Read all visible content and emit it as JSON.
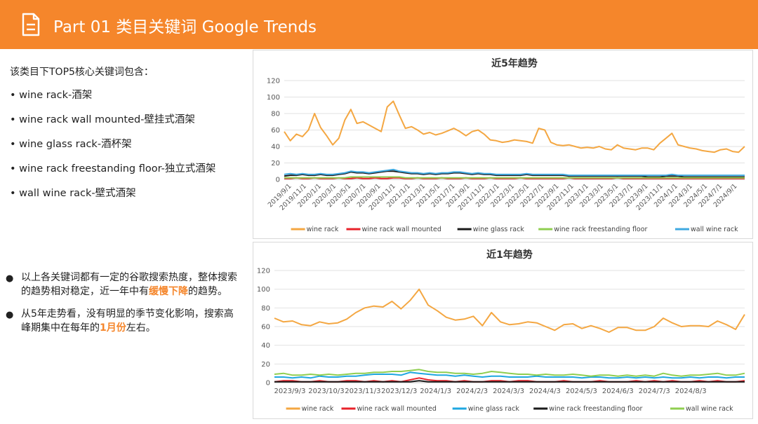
{
  "header": {
    "title": "Part 01 类目关键词 Google Trends"
  },
  "intro": "该类目下TOP5核心关键词包含：",
  "keywords": [
    "wine  rack-酒架",
    "wine rack wall mounted-壁挂式酒架",
    "wine glass rack-酒杯架",
    "wine rack freestanding floor-独立式酒架",
    "wall wine rack-壁式酒架"
  ],
  "notes": [
    {
      "before": "以上各关键词都有一定的谷歌搜索热度，整体搜索的趋势相对稳定，近一年中有",
      "highlight": "缓慢下降",
      "after": "的趋势。"
    },
    {
      "before": "从5年走势看，没有明显的季节变化影响，搜索高峰期集中在每年的",
      "highlight": "1月份",
      "after": "左右。"
    }
  ],
  "colors": {
    "header": "#f5862b",
    "highlight": "#f5862b"
  },
  "chart_data": [
    {
      "type": "line",
      "title": "近5年趋势",
      "ylim": [
        0,
        120
      ],
      "yticks": [
        0,
        20,
        40,
        60,
        80,
        100,
        120
      ],
      "x_tick_labels": [
        "2019/9/1",
        "2019/11/1",
        "2020/1/1",
        "2020/3/1",
        "2020/5/1",
        "2020/7/1",
        "2020/9/1",
        "2020/11/1",
        "2021/1/1",
        "2021/3/1",
        "2021/5/1",
        "2021/7/1",
        "2021/9/1",
        "2021/11/1",
        "2022/1/1",
        "2022/3/1",
        "2022/5/1",
        "2022/7/1",
        "2022/9/1",
        "2022/11/1",
        "2023/1/1",
        "2023/3/1",
        "2023/5/1",
        "2023/7/1",
        "2023/9/1",
        "2023/11/1",
        "2024/1/1",
        "2024/3/1",
        "2024/5/1",
        "2024/7/1",
        "2024/9/1"
      ],
      "series": [
        {
          "name": "wine rack",
          "color": "#f4a742",
          "values": [
            58,
            47,
            55,
            52,
            60,
            80,
            63,
            53,
            42,
            50,
            72,
            85,
            68,
            70,
            66,
            62,
            58,
            88,
            95,
            78,
            62,
            64,
            60,
            55,
            57,
            54,
            56,
            59,
            62,
            58,
            53,
            58,
            60,
            55,
            48,
            47,
            45,
            46,
            48,
            47,
            46,
            44,
            62,
            60,
            45,
            42,
            41,
            42,
            40,
            38,
            39,
            38,
            40,
            37,
            36,
            42,
            38,
            37,
            36,
            38,
            38,
            36,
            44,
            50,
            56,
            42,
            40,
            38,
            37,
            35,
            34,
            33,
            36,
            37,
            34,
            33,
            40
          ]
        },
        {
          "name": "wine rack wall mounted",
          "color": "#e8222a",
          "values": [
            1,
            1,
            2,
            1,
            1,
            2,
            1,
            1,
            1,
            2,
            1,
            1,
            2,
            1,
            1,
            2,
            1,
            1,
            2,
            2,
            1,
            1,
            2,
            1,
            1,
            1,
            2,
            1,
            1,
            1,
            2,
            1,
            1,
            1,
            2,
            1,
            1,
            1,
            1,
            2,
            1,
            1,
            1,
            1,
            1,
            1,
            1,
            2,
            1,
            1,
            1,
            1,
            1,
            1,
            1,
            2,
            1,
            1,
            1,
            1,
            1,
            1,
            1,
            1,
            1,
            1,
            1,
            1,
            1,
            1,
            1,
            1,
            1,
            1,
            1,
            1,
            1
          ]
        },
        {
          "name": "wine glass rack",
          "color": "#1a1a1a",
          "values": [
            4,
            5,
            5,
            6,
            5,
            5,
            6,
            5,
            5,
            6,
            7,
            9,
            8,
            8,
            7,
            8,
            9,
            10,
            10,
            9,
            8,
            7,
            7,
            6,
            7,
            6,
            7,
            7,
            8,
            8,
            7,
            6,
            7,
            6,
            6,
            5,
            5,
            5,
            5,
            5,
            6,
            5,
            5,
            5,
            5,
            5,
            5,
            4,
            4,
            4,
            4,
            4,
            4,
            4,
            4,
            4,
            4,
            4,
            4,
            4,
            3,
            3,
            3,
            4,
            4,
            4,
            3,
            3,
            3,
            3,
            3,
            3,
            3,
            3,
            3,
            3,
            3
          ]
        },
        {
          "name": "wine rack freestanding floor",
          "color": "#8fce50",
          "values": [
            2,
            2,
            2,
            2,
            2,
            2,
            2,
            2,
            2,
            2,
            2,
            3,
            3,
            3,
            3,
            3,
            3,
            3,
            3,
            3,
            2,
            2,
            2,
            2,
            2,
            2,
            2,
            2,
            2,
            2,
            2,
            2,
            2,
            2,
            2,
            2,
            2,
            2,
            2,
            2,
            2,
            2,
            2,
            2,
            2,
            2,
            2,
            2,
            2,
            2,
            2,
            2,
            2,
            2,
            2,
            2,
            2,
            2,
            2,
            2,
            2,
            2,
            2,
            2,
            2,
            2,
            2,
            2,
            2,
            2,
            2,
            2,
            2,
            2,
            2,
            2,
            2
          ]
        },
        {
          "name": "wall wine rack",
          "color": "#3fa9e0",
          "values": [
            6,
            7,
            6,
            7,
            6,
            6,
            7,
            6,
            6,
            7,
            8,
            10,
            9,
            9,
            8,
            9,
            10,
            11,
            12,
            10,
            9,
            8,
            8,
            7,
            8,
            7,
            8,
            8,
            9,
            9,
            8,
            7,
            8,
            7,
            7,
            6,
            6,
            6,
            6,
            6,
            7,
            6,
            6,
            6,
            6,
            6,
            6,
            5,
            5,
            5,
            5,
            5,
            5,
            5,
            5,
            5,
            5,
            5,
            5,
            5,
            5,
            5,
            5,
            5,
            6,
            5,
            5,
            5,
            5,
            5,
            5,
            5,
            5,
            5,
            5,
            5,
            5
          ]
        }
      ]
    },
    {
      "type": "line",
      "title": "近1年趋势",
      "ylim": [
        0,
        120
      ],
      "yticks": [
        0,
        20,
        40,
        60,
        80,
        100,
        120
      ],
      "x_tick_labels": [
        "2023/9/3",
        "2023/10/3",
        "2023/11/3",
        "2023/12/3",
        "2024/1/3",
        "2024/2/3",
        "2024/3/3",
        "2024/4/3",
        "2024/5/3",
        "2024/6/3",
        "2024/7/3",
        "2024/8/3"
      ],
      "series": [
        {
          "name": "wine rack",
          "color": "#f4a742",
          "values": [
            69,
            65,
            66,
            62,
            61,
            65,
            63,
            64,
            68,
            75,
            80,
            82,
            81,
            87,
            79,
            88,
            100,
            83,
            77,
            70,
            67,
            68,
            71,
            61,
            75,
            65,
            62,
            63,
            65,
            64,
            60,
            56,
            62,
            63,
            58,
            61,
            58,
            54,
            59,
            59,
            56,
            56,
            60,
            69,
            64,
            60,
            61,
            61,
            60,
            66,
            62,
            57,
            73
          ]
        },
        {
          "name": "wine rack wall mounted",
          "color": "#e8222a",
          "values": [
            1,
            2,
            2,
            1,
            1,
            2,
            1,
            1,
            2,
            2,
            1,
            2,
            1,
            2,
            1,
            3,
            5,
            3,
            2,
            2,
            1,
            2,
            1,
            1,
            2,
            2,
            1,
            2,
            2,
            1,
            1,
            1,
            2,
            1,
            1,
            1,
            2,
            1,
            1,
            1,
            2,
            1,
            2,
            1,
            2,
            1,
            1,
            2,
            1,
            2,
            1,
            1,
            2
          ]
        },
        {
          "name": "wine glass rack",
          "color": "#1ea7e0",
          "values": [
            6,
            6,
            5,
            6,
            5,
            7,
            6,
            6,
            7,
            7,
            8,
            9,
            9,
            9,
            8,
            11,
            10,
            9,
            8,
            8,
            7,
            8,
            7,
            6,
            7,
            7,
            6,
            6,
            6,
            7,
            6,
            6,
            6,
            6,
            5,
            6,
            6,
            5,
            5,
            6,
            5,
            6,
            5,
            6,
            5,
            5,
            6,
            5,
            6,
            6,
            5,
            6,
            6
          ]
        },
        {
          "name": "wine rack freestanding floor",
          "color": "#1a1a1a",
          "values": [
            1,
            1,
            1,
            1,
            1,
            1,
            1,
            1,
            1,
            1,
            1,
            1,
            1,
            1,
            1,
            1,
            2,
            1,
            1,
            1,
            1,
            1,
            1,
            1,
            1,
            1,
            1,
            1,
            1,
            1,
            1,
            1,
            1,
            1,
            1,
            1,
            1,
            1,
            1,
            1,
            1,
            1,
            1,
            1,
            1,
            1,
            1,
            1,
            1,
            1,
            1,
            1,
            1
          ]
        },
        {
          "name": "wall wine rack",
          "color": "#8fce50",
          "values": [
            9,
            10,
            8,
            8,
            9,
            8,
            9,
            8,
            9,
            10,
            10,
            11,
            11,
            12,
            12,
            13,
            14,
            12,
            11,
            11,
            10,
            10,
            9,
            10,
            12,
            11,
            10,
            9,
            9,
            8,
            9,
            8,
            8,
            9,
            8,
            7,
            8,
            8,
            7,
            8,
            7,
            8,
            7,
            10,
            8,
            7,
            8,
            8,
            9,
            10,
            8,
            8,
            10
          ]
        }
      ]
    }
  ]
}
